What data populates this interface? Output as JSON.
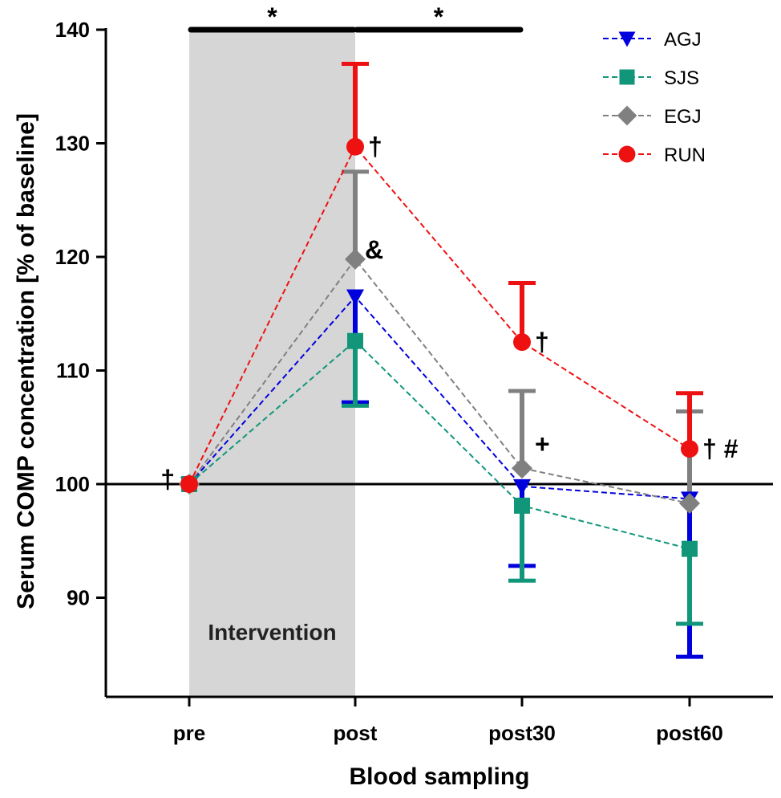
{
  "chart_data": {
    "type": "line",
    "title": "",
    "xlabel": "Blood sampling",
    "ylabel": "Serum COMP concentration [% of baseline]",
    "categories": [
      "pre",
      "post",
      "post30",
      "post60"
    ],
    "ylim": [
      80,
      140
    ],
    "yticks": [
      90,
      100,
      110,
      120,
      130,
      140
    ],
    "reference_line": 100,
    "shaded_region": {
      "from": "pre",
      "to": "post",
      "label": "Intervention"
    },
    "series": [
      {
        "name": "AGJ",
        "marker": "triangle-down",
        "color": "#0000dd",
        "values": [
          100,
          116.5,
          99.8,
          98.7
        ],
        "error_low": [
          100,
          107.2,
          92.8,
          84.8
        ],
        "error_high": [
          100,
          116.5,
          99.8,
          98.7
        ]
      },
      {
        "name": "SJS",
        "marker": "square",
        "color": "#11967a",
        "values": [
          100,
          112.6,
          98.1,
          94.3
        ],
        "error_low": [
          100,
          106.9,
          91.5,
          87.7
        ],
        "error_high": [
          100,
          112.6,
          98.1,
          94.3
        ]
      },
      {
        "name": "EGJ",
        "marker": "diamond",
        "color": "#808080",
        "values": [
          100,
          119.8,
          101.4,
          98.3
        ],
        "error_low": [
          100,
          119.8,
          101.4,
          98.3
        ],
        "error_high": [
          100,
          127.5,
          108.2,
          106.4
        ]
      },
      {
        "name": "RUN",
        "marker": "circle",
        "color": "#ee1111",
        "values": [
          100,
          129.7,
          112.5,
          103.1
        ],
        "error_low": [
          100,
          129.7,
          112.5,
          103.1
        ],
        "error_high": [
          100,
          137.0,
          117.7,
          108.0
        ]
      }
    ],
    "significance_brackets": [
      {
        "from": "pre",
        "to": "post",
        "label": "*"
      },
      {
        "from": "post",
        "to": "post30",
        "label": "*"
      }
    ],
    "annotations": [
      {
        "category": "pre",
        "value": 100,
        "text": "†"
      },
      {
        "category": "post",
        "value": 129.7,
        "text": "†"
      },
      {
        "category": "post",
        "value": 119.8,
        "text": "&"
      },
      {
        "category": "post30",
        "value": 112.5,
        "text": "†"
      },
      {
        "category": "post30",
        "value": 101.4,
        "text": "+"
      },
      {
        "category": "post60",
        "value": 103.1,
        "text": "† #"
      }
    ],
    "legend_position": "top-right"
  }
}
